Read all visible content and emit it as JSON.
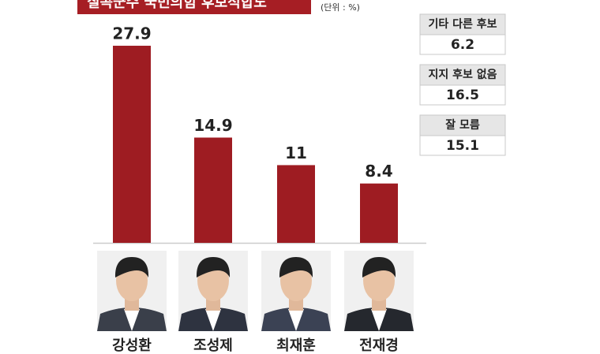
{
  "chart_data": {
    "type": "bar",
    "title": "칠곡군수 국민의힘 후보적합도",
    "unit": "(단위 : %)",
    "categories": [
      "강성환",
      "조성제",
      "최재훈",
      "전재경"
    ],
    "values": [
      27.9,
      14.9,
      11,
      8.4
    ],
    "color": "#9e1c22",
    "others": [
      {
        "label": "기타 다른 후보",
        "value": 6.2
      },
      {
        "label": "지지 후보 없음",
        "value": 16.5
      },
      {
        "label": "잘 모름",
        "value": 15.1
      }
    ]
  }
}
